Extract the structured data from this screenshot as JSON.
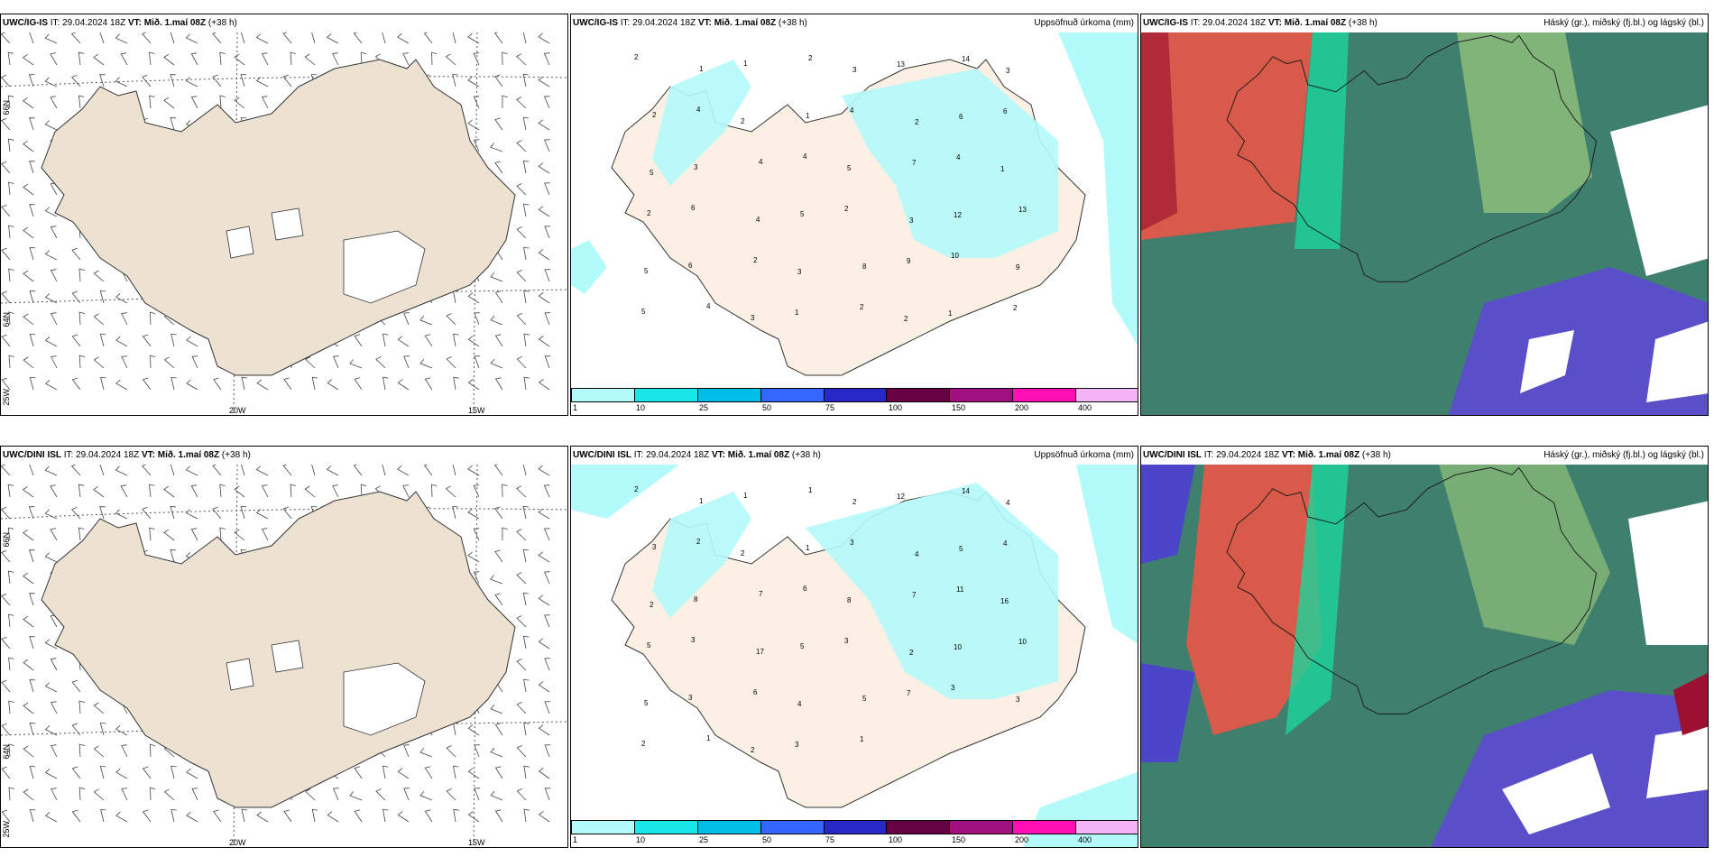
{
  "rows": [
    {
      "model": "UWC/IG-IS",
      "init_label": "IT:",
      "init_time": "29.04.2024 18Z",
      "valid_label": "VT:",
      "valid_time": "Mið. 1.maí 08Z",
      "lead": "(+38 h)"
    },
    {
      "model": "UWC/DINI ISL",
      "init_label": "IT:",
      "init_time": "29.04.2024 18Z",
      "valid_label": "VT:",
      "valid_time": "Mið. 1.maí 08Z",
      "lead": "(+38 h)"
    }
  ],
  "precip_title": "Uppsöfnuð úrkoma (mm)",
  "cloud_title": "Háský (gr.), miðský (fj.bl.) og lágský (bl.)",
  "grid_labels": {
    "lat_66": "66N",
    "lat_64": "64N",
    "lon_25": "25W",
    "lon_20": "20W",
    "lon_15": "15W"
  },
  "colorbar": {
    "ticks": [
      "1",
      "10",
      "25",
      "50",
      "75",
      "100",
      "150",
      "200",
      "400"
    ],
    "colors": [
      "#b3fafa",
      "#19e6e6",
      "#00bfe6",
      "#3366ff",
      "#2828c8",
      "#660044",
      "#a0107f",
      "#ff10b4",
      "#f5b4f5"
    ]
  },
  "precip_values_top": [
    "2",
    "1",
    "1",
    "2",
    "3",
    "13",
    "14",
    "3",
    "2",
    "4",
    "2",
    "1",
    "4",
    "2",
    "6",
    "6",
    "5",
    "3",
    "4",
    "4",
    "5",
    "7",
    "4",
    "1",
    "2",
    "6",
    "4",
    "5",
    "2",
    "3",
    "12",
    "13",
    "5",
    "6",
    "2",
    "3",
    "8",
    "9",
    "10",
    "9",
    "5",
    "4",
    "3",
    "1",
    "2",
    "2",
    "1",
    "2"
  ],
  "precip_values_bottom": [
    "2",
    "1",
    "1",
    "1",
    "2",
    "12",
    "14",
    "4",
    "3",
    "2",
    "2",
    "1",
    "3",
    "4",
    "5",
    "4",
    "2",
    "8",
    "7",
    "6",
    "8",
    "7",
    "11",
    "16",
    "5",
    "3",
    "17",
    "5",
    "3",
    "2",
    "10",
    "10",
    "5",
    "3",
    "6",
    "4",
    "5",
    "7",
    "3",
    "3",
    "2",
    "1",
    "2",
    "3",
    "1"
  ],
  "cloud_colors": {
    "high": "#e8463c",
    "middle": "#2f8a6e",
    "low": "#4b46c8",
    "land": "#f0e3d0"
  }
}
